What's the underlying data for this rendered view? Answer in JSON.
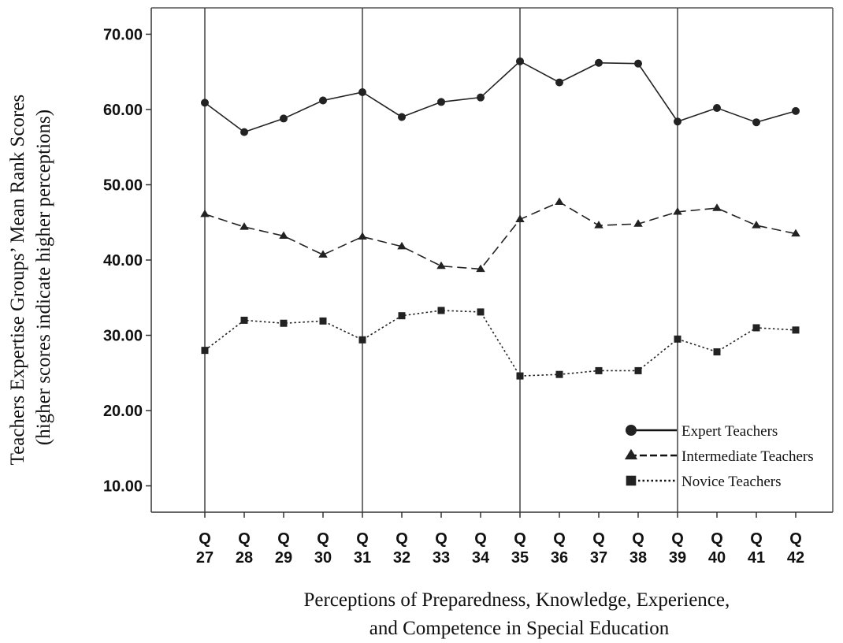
{
  "chart_data": {
    "type": "line",
    "title": "",
    "xlabel_lines": [
      "Perceptions of Preparedness, Knowledge, Experience,",
      "and Competence in Special Education"
    ],
    "ylabel_lines": [
      "Teachers Expertise Groups’ Mean Rank Scores",
      "(higher scores indicate higher perceptions)"
    ],
    "categories": [
      [
        "Q",
        "27"
      ],
      [
        "Q",
        "28"
      ],
      [
        "Q",
        "29"
      ],
      [
        "Q",
        "30"
      ],
      [
        "Q",
        "31"
      ],
      [
        "Q",
        "32"
      ],
      [
        "Q",
        "33"
      ],
      [
        "Q",
        "34"
      ],
      [
        "Q",
        "35"
      ],
      [
        "Q",
        "36"
      ],
      [
        "Q",
        "37"
      ],
      [
        "Q",
        "38"
      ],
      [
        "Q",
        "39"
      ],
      [
        "Q",
        "40"
      ],
      [
        "Q",
        "41"
      ],
      [
        "Q",
        "42"
      ]
    ],
    "ylim": [
      6.5,
      73.5
    ],
    "yticks": [
      10,
      20,
      30,
      40,
      50,
      60,
      70
    ],
    "ytick_labels": [
      "10.00",
      "20.00",
      "30.00",
      "40.00",
      "50.00",
      "60.00",
      "70.00"
    ],
    "reference_lines_at": [
      "Q 27",
      "Q 31",
      "Q 35",
      "Q 39"
    ],
    "grid": false,
    "legend_position": "bottom-right",
    "series": [
      {
        "name": "Expert Teachers",
        "marker": "circle",
        "line_style": "solid",
        "values": [
          60.9,
          57.0,
          58.8,
          61.2,
          62.3,
          59.0,
          61.0,
          61.6,
          66.4,
          63.6,
          66.2,
          66.1,
          58.4,
          60.2,
          58.3,
          59.8
        ]
      },
      {
        "name": "Intermediate Teachers",
        "marker": "triangle",
        "line_style": "dashed",
        "values": [
          46.1,
          44.4,
          43.2,
          40.7,
          43.1,
          41.8,
          39.2,
          38.8,
          45.4,
          47.7,
          44.6,
          44.8,
          46.4,
          46.9,
          44.6,
          43.5
        ]
      },
      {
        "name": "Novice Teachers",
        "marker": "square",
        "line_style": "dotted",
        "values": [
          28.0,
          32.0,
          31.6,
          31.9,
          29.4,
          32.6,
          33.3,
          33.1,
          24.6,
          24.8,
          25.3,
          25.3,
          29.5,
          27.8,
          31.0,
          30.7
        ]
      }
    ]
  }
}
